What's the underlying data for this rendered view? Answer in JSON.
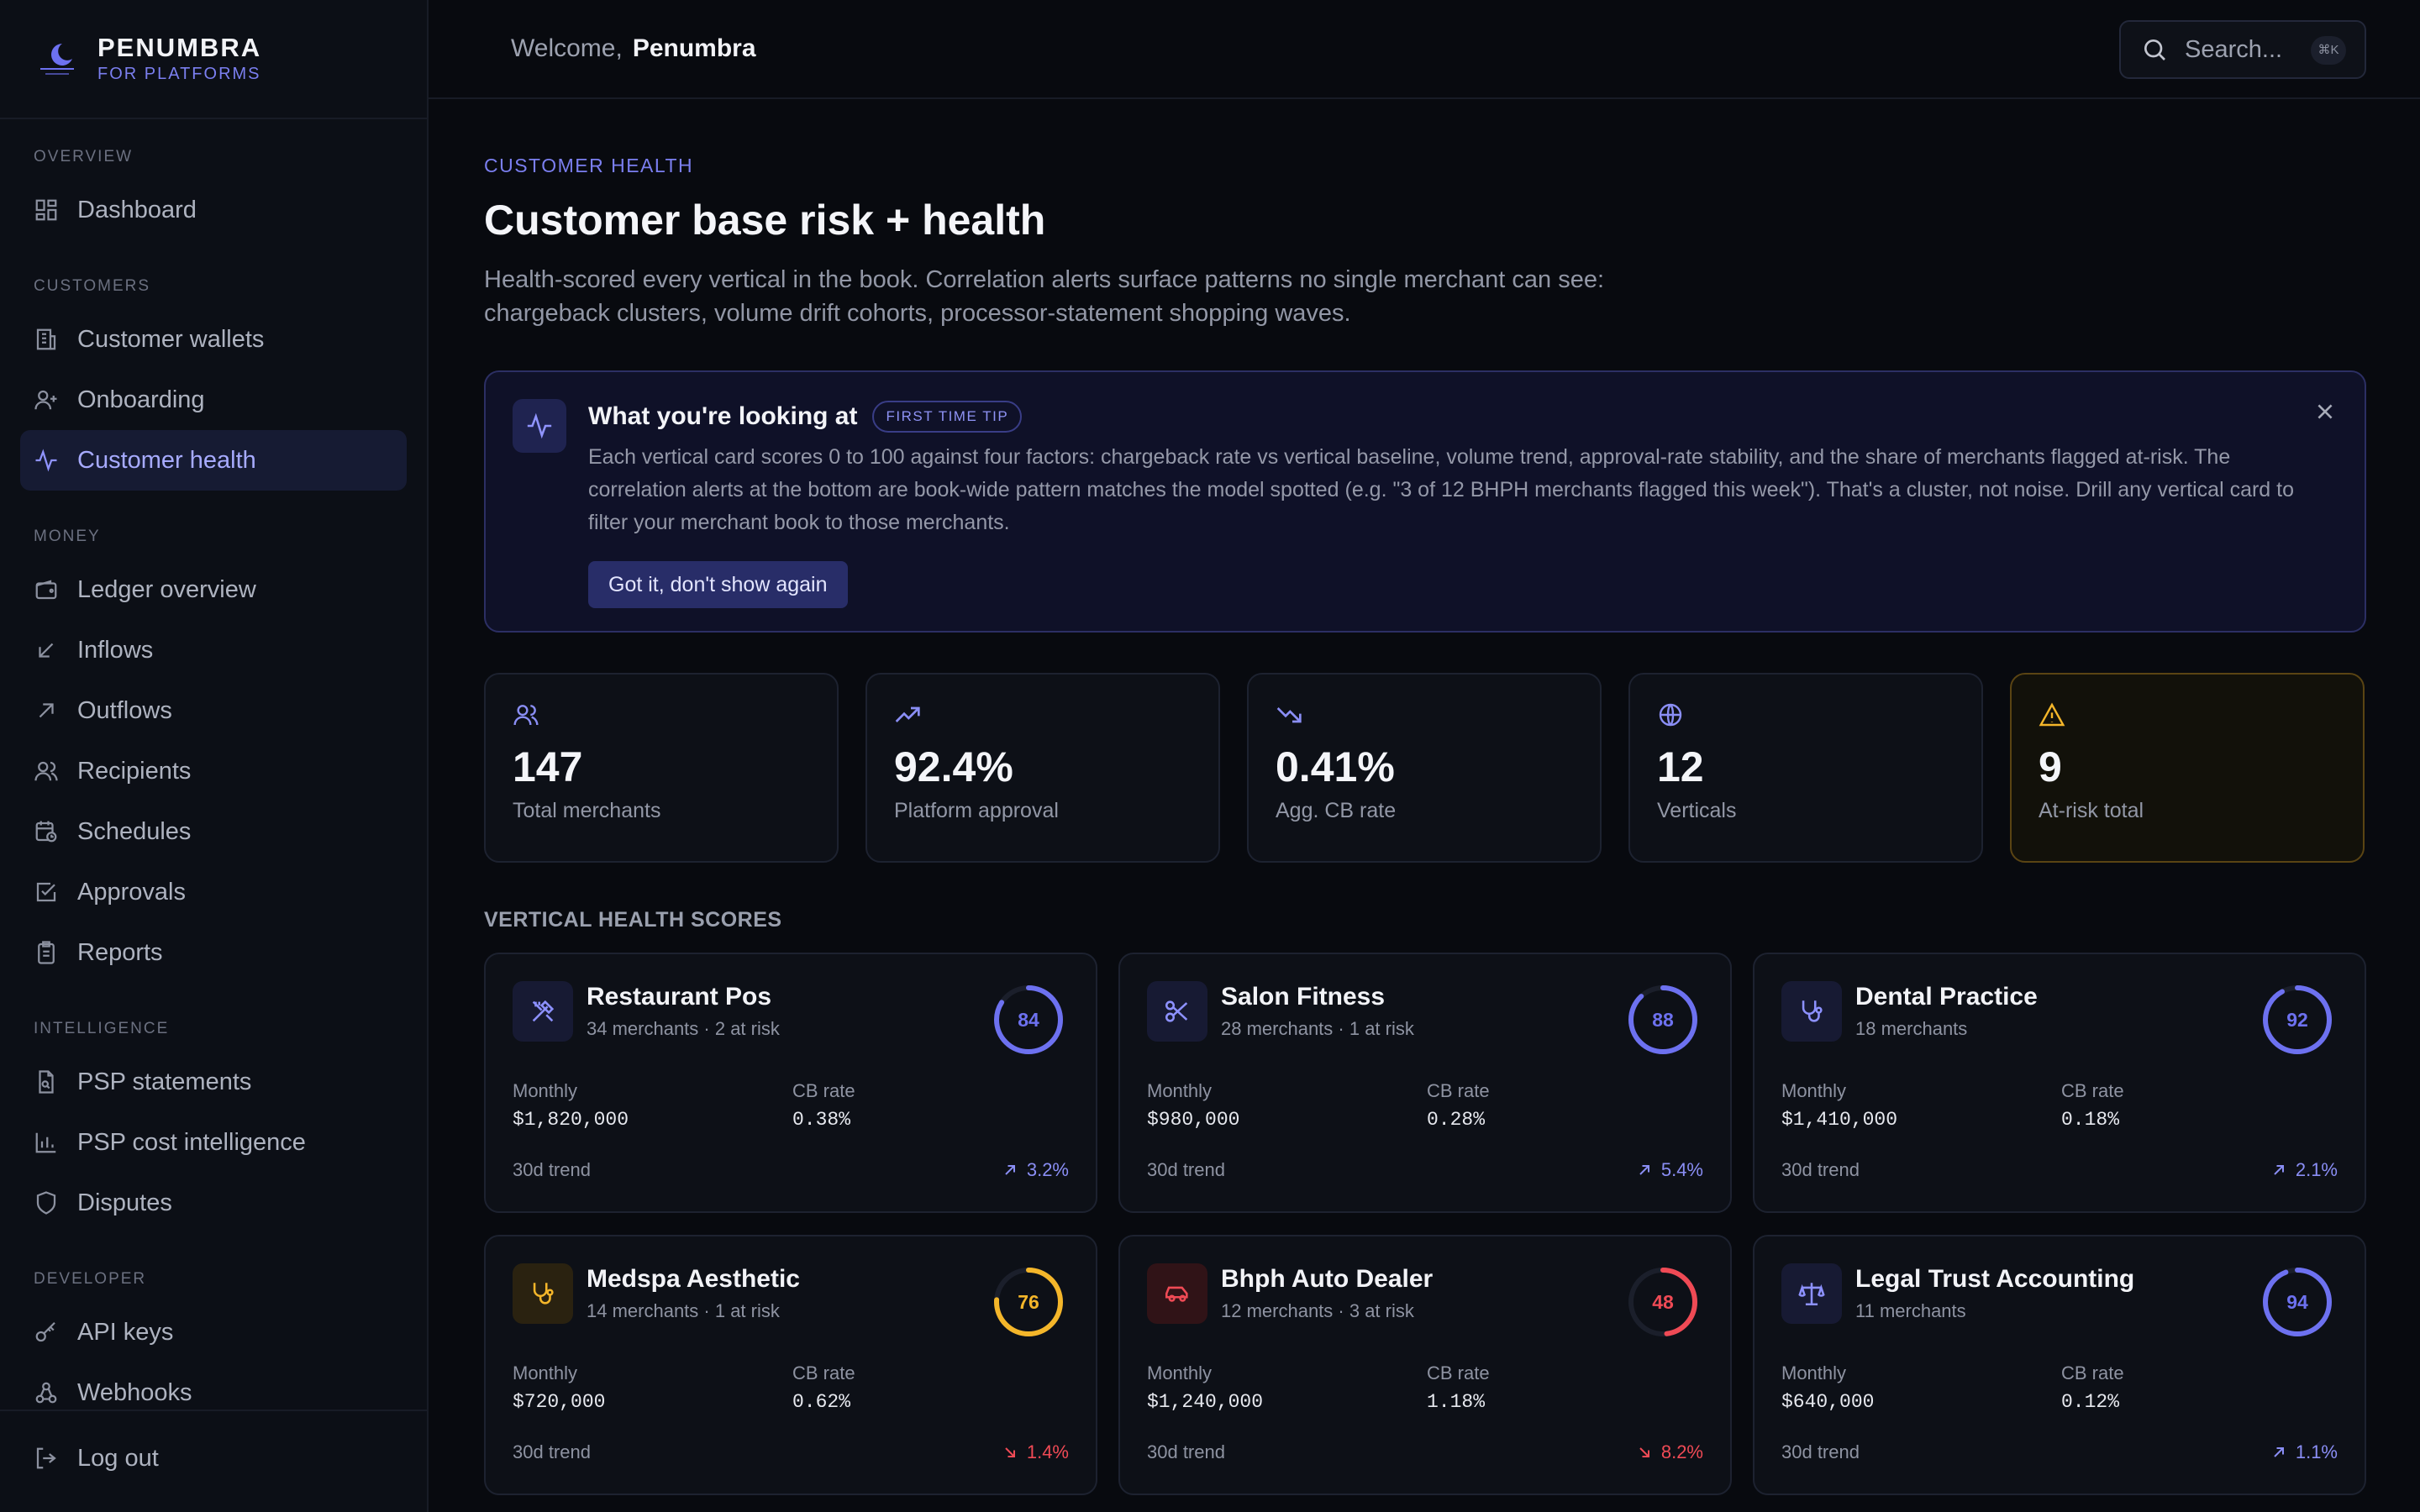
{
  "brand": {
    "name": "PENUMBRA",
    "sub": "FOR PLATFORMS"
  },
  "sidebar": {
    "sections": [
      {
        "label": "OVERVIEW",
        "items": [
          {
            "label": "Dashboard",
            "icon": "dashboard-icon"
          }
        ]
      },
      {
        "label": "CUSTOMERS",
        "items": [
          {
            "label": "Customer wallets",
            "icon": "building-icon"
          },
          {
            "label": "Onboarding",
            "icon": "user-plus-icon"
          },
          {
            "label": "Customer health",
            "icon": "pulse-icon",
            "active": true
          }
        ]
      },
      {
        "label": "MONEY",
        "items": [
          {
            "label": "Ledger overview",
            "icon": "wallet-icon"
          },
          {
            "label": "Inflows",
            "icon": "arrow-down-left-icon"
          },
          {
            "label": "Outflows",
            "icon": "arrow-up-right-icon"
          },
          {
            "label": "Recipients",
            "icon": "users-icon"
          },
          {
            "label": "Schedules",
            "icon": "calendar-clock-icon"
          },
          {
            "label": "Approvals",
            "icon": "check-square-icon"
          },
          {
            "label": "Reports",
            "icon": "clipboard-icon"
          }
        ]
      },
      {
        "label": "INTELLIGENCE",
        "items": [
          {
            "label": "PSP statements",
            "icon": "file-search-icon"
          },
          {
            "label": "PSP cost intelligence",
            "icon": "bar-chart-icon"
          },
          {
            "label": "Disputes",
            "icon": "shield-icon"
          }
        ]
      },
      {
        "label": "DEVELOPER",
        "items": [
          {
            "label": "API keys",
            "icon": "key-icon"
          },
          {
            "label": "Webhooks",
            "icon": "webhook-icon"
          }
        ]
      }
    ],
    "logout": "Log out"
  },
  "topbar": {
    "welcome": "Welcome,",
    "user": "Penumbra",
    "search_placeholder": "Search...",
    "shortcut": "⌘K"
  },
  "page": {
    "eyebrow": "CUSTOMER HEALTH",
    "title": "Customer base risk + health",
    "subtitle": "Health-scored every vertical in the book. Correlation alerts surface patterns no single merchant can see: chargeback clusters, volume drift cohorts, processor-statement shopping waves."
  },
  "tip": {
    "title": "What you're looking at",
    "badge": "FIRST TIME TIP",
    "body": "Each vertical card scores 0 to 100 against four factors: chargeback rate vs vertical baseline, volume trend, approval-rate stability, and the share of merchants flagged at-risk. The correlation alerts at the bottom are book-wide pattern matches the model spotted (e.g. \"3 of 12 BHPH merchants flagged this week\"). That's a cluster, not noise. Drill any vertical card to filter your merchant book to those merchants.",
    "button": "Got it, don't show again"
  },
  "stats": [
    {
      "value": "147",
      "label": "Total merchants",
      "icon": "users-icon"
    },
    {
      "value": "92.4%",
      "label": "Platform approval",
      "icon": "trending-up-icon"
    },
    {
      "value": "0.41%",
      "label": "Agg. CB rate",
      "icon": "trending-down-icon"
    },
    {
      "value": "12",
      "label": "Verticals",
      "icon": "globe-icon"
    },
    {
      "value": "9",
      "label": "At-risk total",
      "icon": "warning-icon"
    }
  ],
  "section_title": "VERTICAL HEALTH SCORES",
  "verticals": [
    {
      "name": "Restaurant Pos",
      "sub": "34 merchants · 2 at risk",
      "score": 84,
      "score_color": "#6d71f0",
      "icon": "utensils-icon",
      "monthly": "$1,820,000",
      "cb_rate": "0.38%",
      "trend": "3.2%",
      "trend_dir": "up"
    },
    {
      "name": "Salon Fitness",
      "sub": "28 merchants · 1 at risk",
      "score": 88,
      "score_color": "#6d71f0",
      "icon": "scissors-icon",
      "monthly": "$980,000",
      "cb_rate": "0.28%",
      "trend": "5.4%",
      "trend_dir": "up"
    },
    {
      "name": "Dental Practice",
      "sub": "18 merchants",
      "score": 92,
      "score_color": "#6d71f0",
      "icon": "stethoscope-icon",
      "monthly": "$1,410,000",
      "cb_rate": "0.18%",
      "trend": "2.1%",
      "trend_dir": "up"
    },
    {
      "name": "Medspa Aesthetic",
      "sub": "14 merchants · 1 at risk",
      "score": 76,
      "score_color": "#f4b62a",
      "icon": "stethoscope-icon",
      "monthly": "$720,000",
      "cb_rate": "0.62%",
      "trend": "1.4%",
      "trend_dir": "down"
    },
    {
      "name": "Bhph Auto Dealer",
      "sub": "12 merchants · 3 at risk",
      "score": 48,
      "score_color": "#ef4a55",
      "icon": "car-icon",
      "monthly": "$1,240,000",
      "cb_rate": "1.18%",
      "trend": "8.2%",
      "trend_dir": "down"
    },
    {
      "name": "Legal Trust Accounting",
      "sub": "11 merchants",
      "score": 94,
      "score_color": "#6d71f0",
      "icon": "scale-icon",
      "monthly": "$640,000",
      "cb_rate": "0.12%",
      "trend": "1.1%",
      "trend_dir": "up"
    }
  ],
  "labels": {
    "monthly": "Monthly",
    "cb_rate": "CB rate",
    "trend": "30d trend"
  }
}
